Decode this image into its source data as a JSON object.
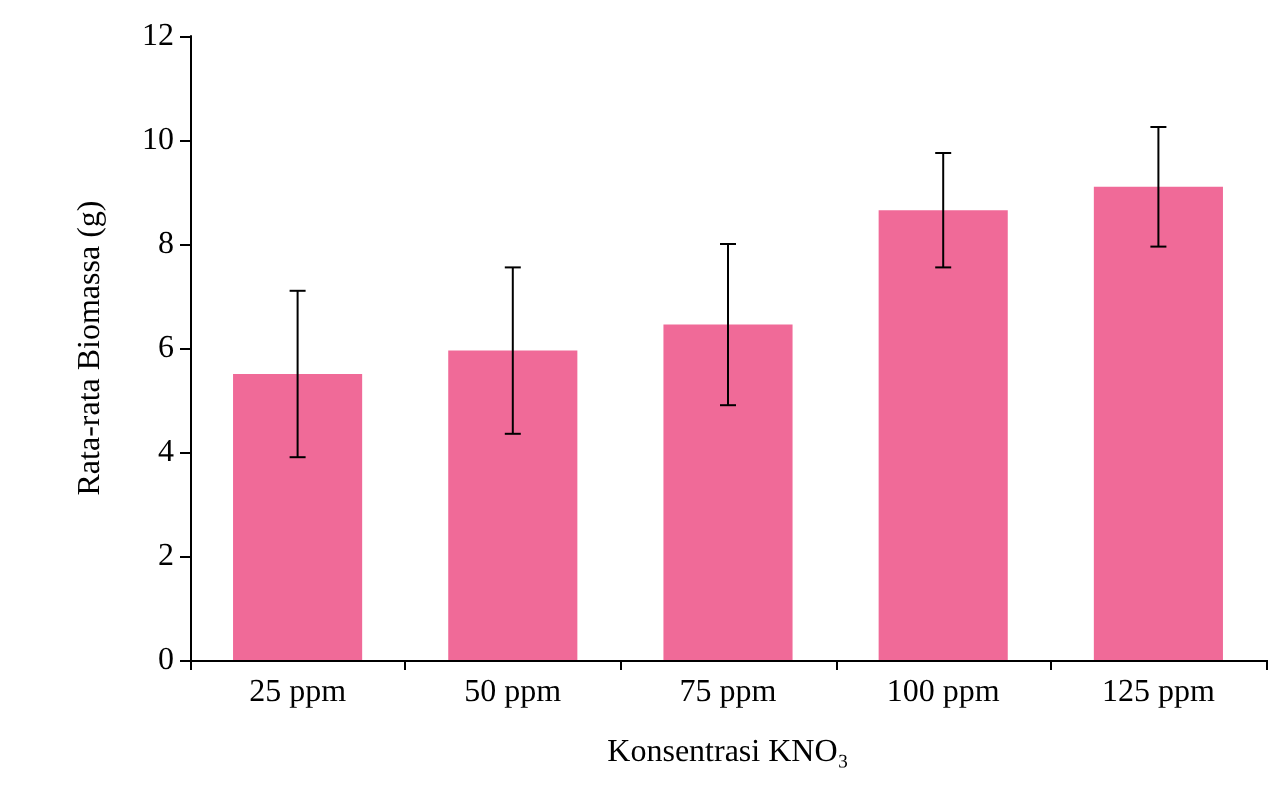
{
  "chart_data": {
    "type": "bar",
    "xlabel": "Konsentrasi KNO₃",
    "ylabel": "Rata-rata Biomassa (g)",
    "categories": [
      "25 ppm",
      "50 ppm",
      "75 ppm",
      "100 ppm",
      "125 ppm"
    ],
    "values": [
      5.5,
      5.95,
      6.45,
      8.65,
      9.1
    ],
    "errors": [
      1.6,
      1.6,
      1.55,
      1.1,
      1.15
    ],
    "color": "#f06a98",
    "ylim": [
      0,
      12
    ],
    "yticks": [
      0,
      2,
      4,
      6,
      8,
      10,
      12
    ],
    "grid": false
  }
}
